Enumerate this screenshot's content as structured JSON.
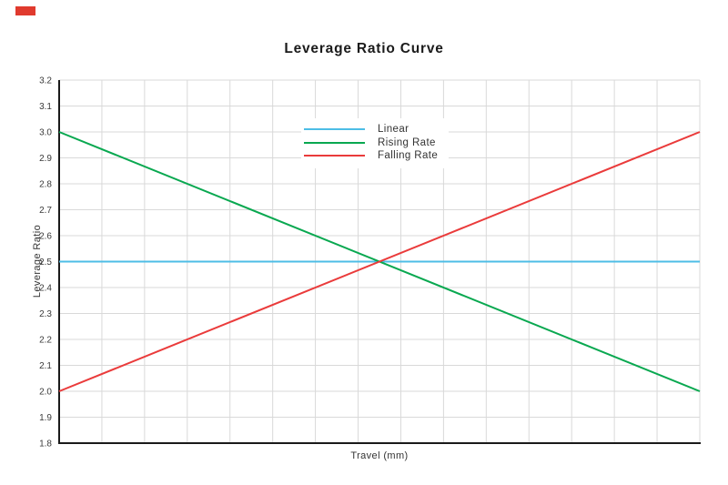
{
  "overlay": {
    "marker_color": "#e03a2e"
  },
  "chart_data": {
    "type": "line",
    "title": "Leverage Ratio Curve",
    "xlabel": "Travel (mm)",
    "ylabel": "Leverage Ratio",
    "xlim": [
      0,
      1
    ],
    "ylim": [
      1.8,
      3.2
    ],
    "yticks": [
      "1.8",
      "1.9",
      "2.0",
      "2.1",
      "2.2",
      "2.3",
      "2.4",
      "2.5",
      "2.6",
      "2.7",
      "2.8",
      "2.9",
      "3.0",
      "3.1",
      "3.2"
    ],
    "x_tick_labels": [],
    "x_grid_intervals": 15,
    "grid": true,
    "grid_color": "#d9d9d9",
    "axis_color": "#1a1a1a",
    "tick_label_color": "#3a3a3a",
    "legend_position": "inside-upper-center",
    "series": [
      {
        "name": "Linear",
        "color": "#4dbde6",
        "x": [
          0,
          1
        ],
        "values": [
          2.5,
          2.5
        ]
      },
      {
        "name": "Rising Rate",
        "color": "#09a850",
        "x": [
          0,
          1
        ],
        "values": [
          3.0,
          2.0
        ]
      },
      {
        "name": "Falling Rate",
        "color": "#ea3b3b",
        "x": [
          0,
          1
        ],
        "values": [
          2.0,
          3.0
        ]
      }
    ]
  }
}
